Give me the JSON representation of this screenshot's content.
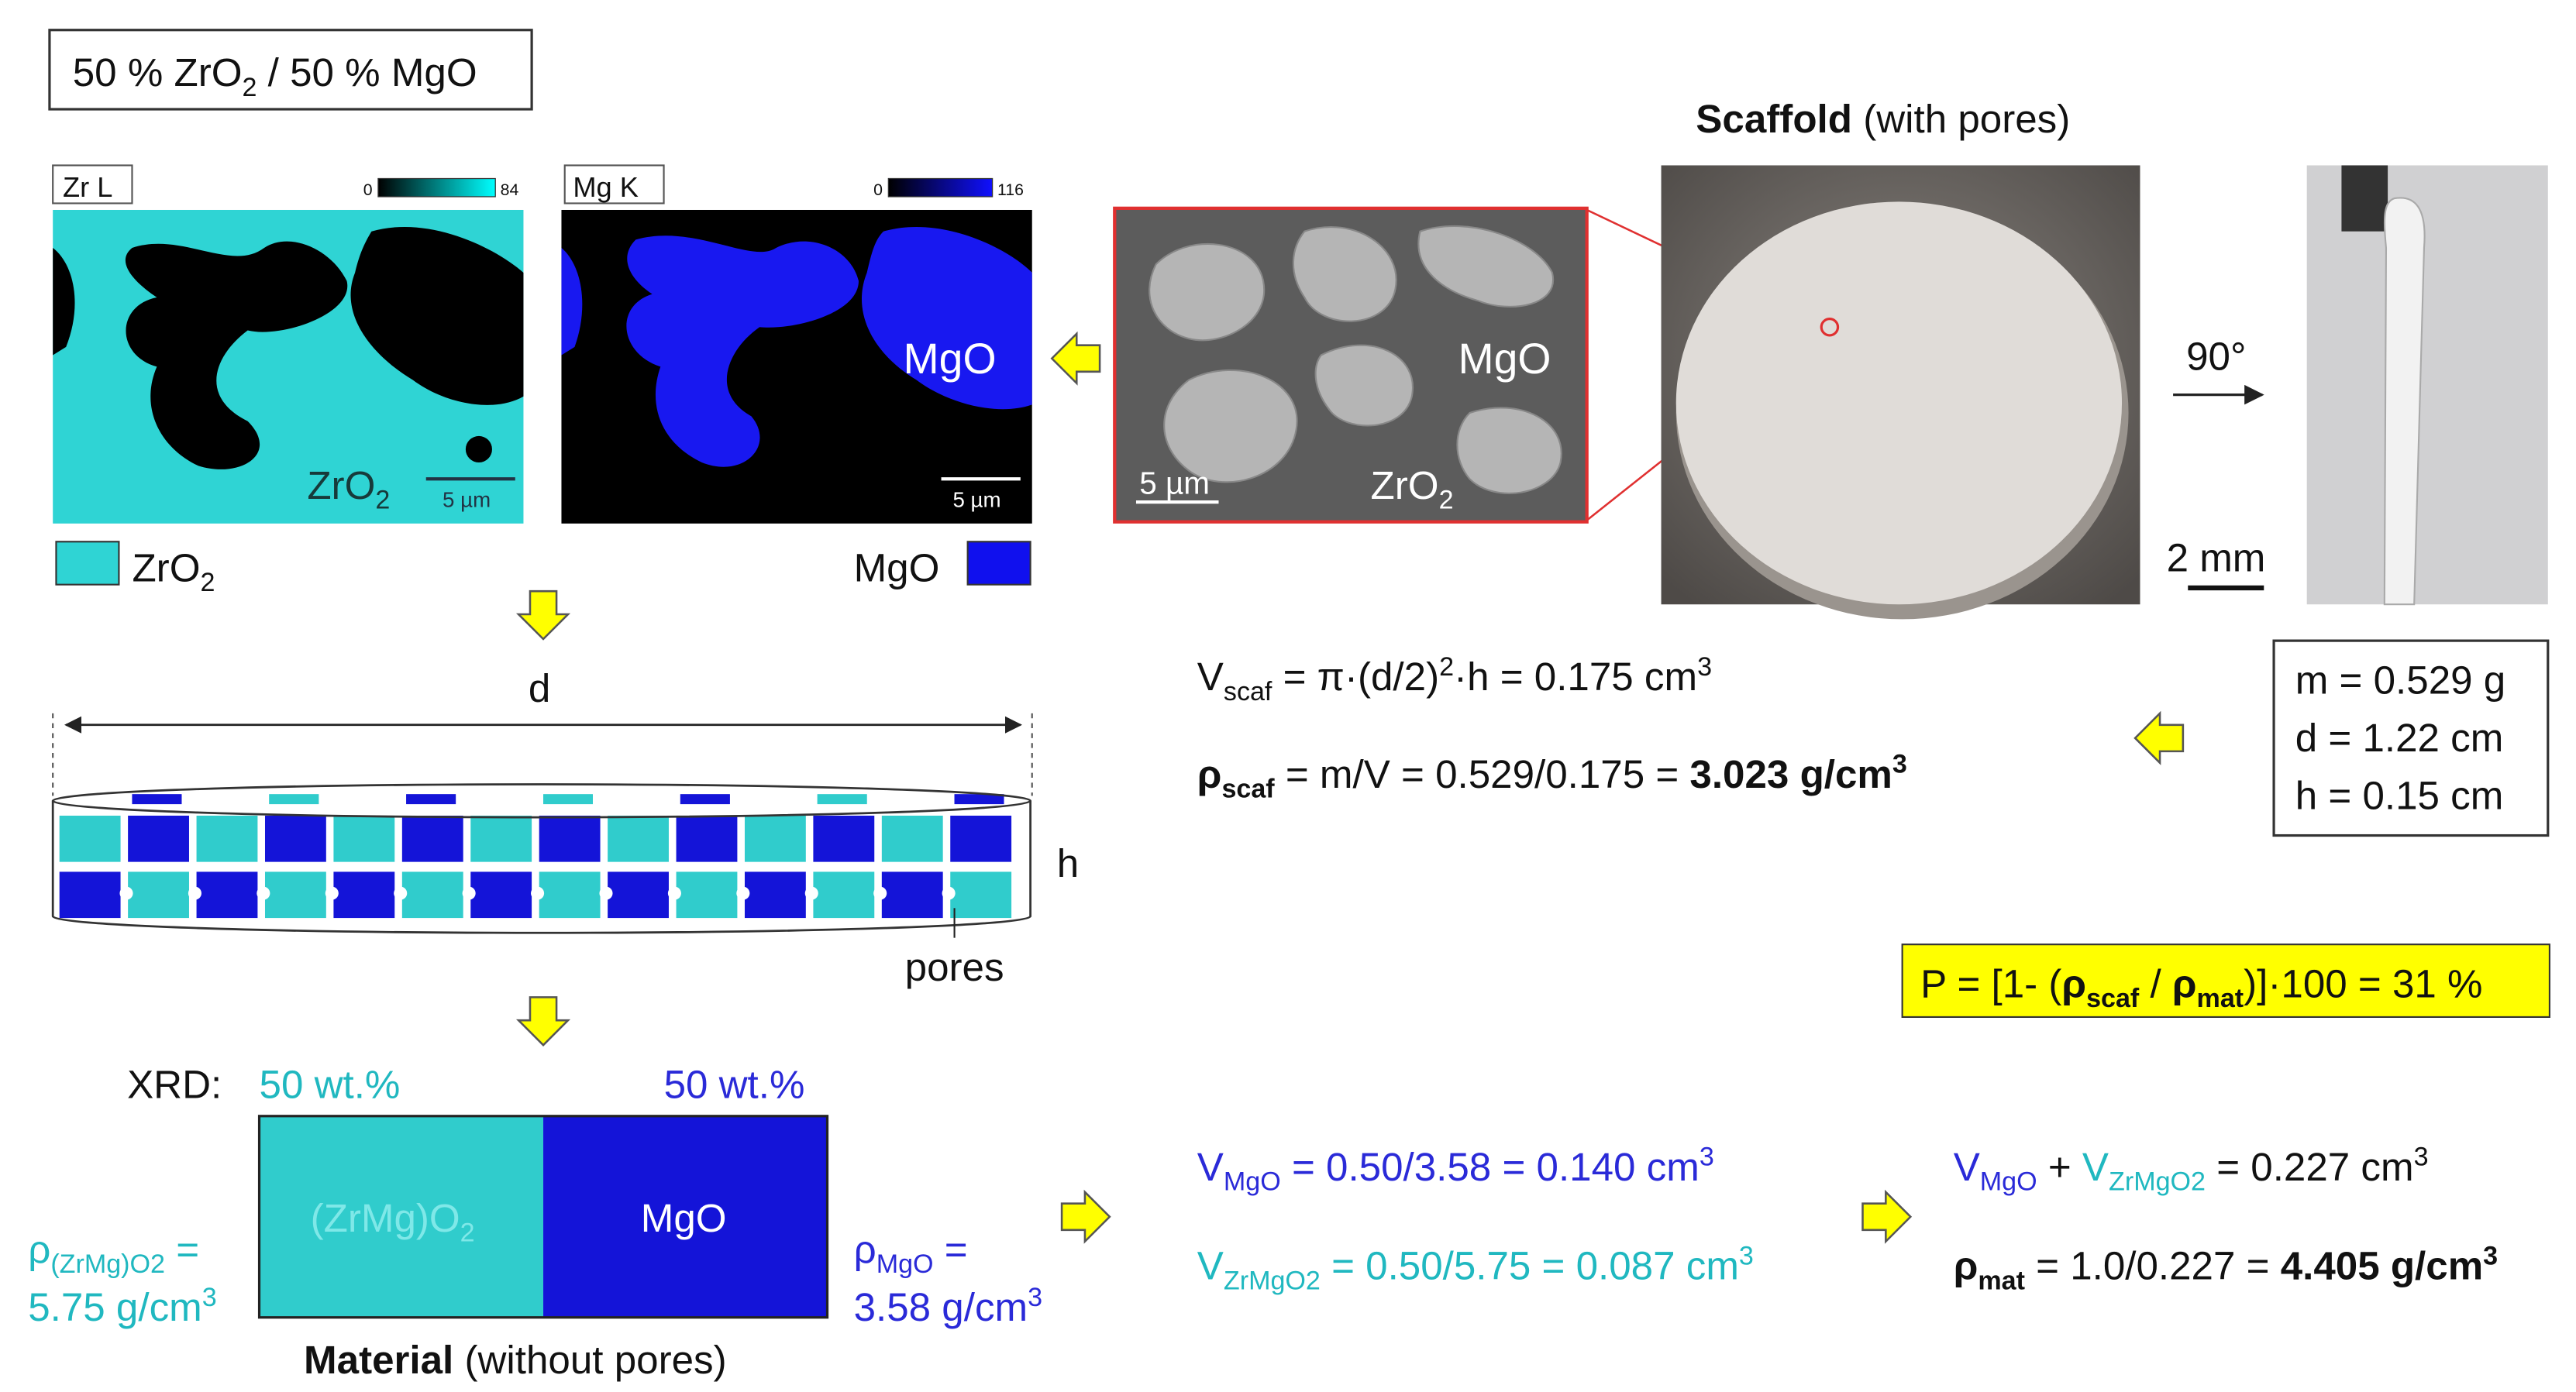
{
  "header": {
    "composition": [
      "50 % ZrO",
      "2",
      " / 50 % MgO"
    ]
  },
  "eds": {
    "zr_map": {
      "label": "Zr L",
      "scale_min": "0",
      "scale_max": "84",
      "phase": [
        "ZrO",
        "2"
      ],
      "scale_bar": "5 µm"
    },
    "mg_map": {
      "label": "Mg K",
      "scale_min": "0",
      "scale_max": "116",
      "phase": "MgO",
      "scale_bar": "5 µm"
    },
    "legend": {
      "zro2": [
        "ZrO",
        "2"
      ],
      "mgo": "MgO"
    }
  },
  "sem": {
    "phase_mgo": "MgO",
    "phase_zro2": [
      "ZrO",
      "2"
    ],
    "scale_bar": "5 µm"
  },
  "scaffold": {
    "title": "Scaffold",
    "title_note": "(with pores)",
    "rotation": "90°",
    "scale_bar": "2 mm"
  },
  "measurements": [
    "m = 0.529 g",
    "d = 1.22 cm",
    "h = 0.15 cm"
  ],
  "volume_eq": [
    "V",
    "scaf",
    " = π·(d/2)",
    "2",
    "·h = 0.175 cm",
    "3"
  ],
  "density_eq": [
    "ρ",
    "scaf",
    " = m/V = 0.529/0.175 = ",
    "3.023 g/cm",
    "3"
  ],
  "porosity": [
    "P = [1- (",
    "ρ",
    "scaf",
    " / ",
    "ρ",
    "mat",
    ")]·100 = 31 %"
  ],
  "schematic": {
    "d": "d",
    "h": "h",
    "pores": "pores"
  },
  "xrd": {
    "label": "XRD:",
    "zr_wt": "50 wt.%",
    "mg_wt": "50 wt.%",
    "zr_phase": [
      "(ZrMg)O",
      "2"
    ],
    "mg_phase": "MgO",
    "zr_density": [
      "ρ",
      "(ZrMg)O2",
      " =",
      "5.75 g/cm",
      "3"
    ],
    "mg_density": [
      "ρ",
      "MgO",
      " =",
      "3.58 g/cm",
      "3"
    ],
    "caption": "Material",
    "caption_note": "(without pores)"
  },
  "calc": {
    "v_mgo": [
      "V",
      "MgO",
      " = 0.50/3.58 = 0.140 cm",
      "3"
    ],
    "v_zrmgo2": [
      "V",
      "ZrMgO2",
      " = 0.50/5.75 = 0.087 cm",
      "3"
    ],
    "v_sum": [
      "V",
      "MgO",
      " + ",
      "V",
      "ZrMgO2",
      " = 0.227 cm",
      "3"
    ],
    "rho_mat": [
      "ρ",
      "mat",
      " = 1.0/0.227 = ",
      "4.405 g/cm",
      "3"
    ]
  }
}
